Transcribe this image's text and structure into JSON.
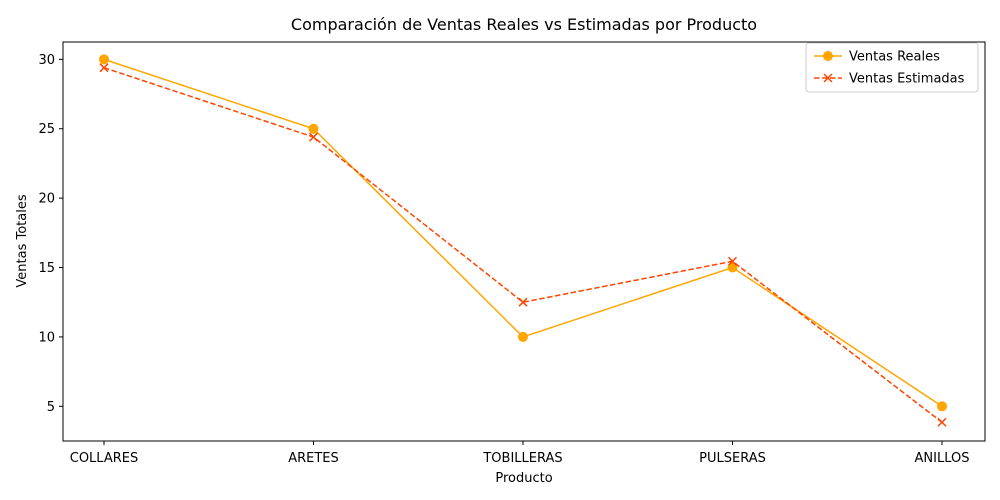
{
  "chart_data": {
    "type": "line",
    "title": "Comparación de Ventas Reales vs Estimadas por Producto",
    "xlabel": "Producto",
    "ylabel": "Ventas Totales",
    "categories": [
      "COLLARES",
      "ARETES",
      "TOBILLERAS",
      "PULSERAS",
      "ANILLOS"
    ],
    "ylim": [
      2.5,
      31.25
    ],
    "yticks": [
      5,
      10,
      15,
      20,
      25,
      30
    ],
    "grid": false,
    "legend_position": "top-right",
    "series": [
      {
        "name": "Ventas Reales",
        "values": [
          30,
          25,
          10,
          15,
          5
        ],
        "color": "#FFA500",
        "line_style": "solid",
        "marker": "circle"
      },
      {
        "name": "Ventas Estimadas",
        "values": [
          29.4,
          24.4,
          12.5,
          15.45,
          3.85
        ],
        "color": "#FF4500",
        "line_style": "dashed",
        "marker": "x"
      }
    ]
  }
}
